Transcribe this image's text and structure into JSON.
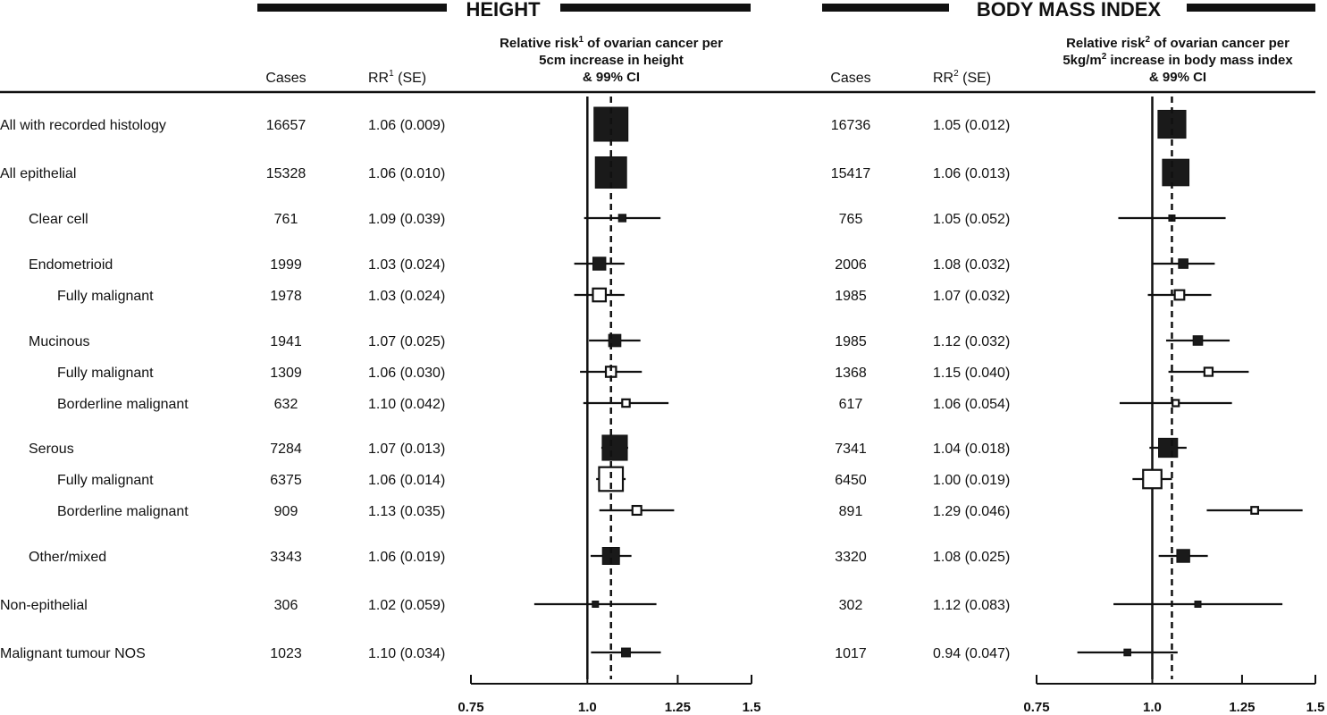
{
  "panels": {
    "height": {
      "title": "HEIGHT",
      "cases_header": "Cases",
      "rr_header": "RR",
      "rr_sup": "1",
      "rr_se": " (SE)",
      "axis_title": {
        "l1a": "Relative risk",
        "l1sup": "1",
        "l1b": " of ovarian cancer per",
        "l2a": "5cm increase in height",
        "l2sup": "",
        "l2b": "",
        "l3": "& 99% CI"
      }
    },
    "bmi": {
      "title": "BODY MASS INDEX",
      "cases_header": "Cases",
      "rr_header": "RR",
      "rr_sup": "2",
      "rr_se": " (SE)",
      "axis_title": {
        "l1a": "Relative risk",
        "l1sup": "2",
        "l1b": " of ovarian cancer per",
        "l2a": "5kg/m",
        "l2sup": "2",
        "l2b": " increase in body mass index",
        "l3": "& 99% CI"
      }
    }
  },
  "chart_data": {
    "type": "forest",
    "x_scale": "log",
    "reference_line": 1.0,
    "xlim": [
      0.75,
      1.5
    ],
    "xticks": [
      0.75,
      1.0,
      1.25,
      1.5
    ],
    "xtick_labels": [
      "0.75",
      "1.0",
      "1.25",
      "1.5"
    ],
    "height_summary_line": 1.06,
    "bmi_summary_line": 1.05,
    "rows": [
      {
        "label": "All with recorded histology",
        "indent": 0,
        "filled": true,
        "height": {
          "cases": "16657",
          "rr_text": "1.06 (0.009)",
          "rr": 1.06,
          "lo": 1.036,
          "hi": 1.085,
          "box": 1.0
        },
        "bmi": {
          "cases": "16736",
          "rr_text": "1.05 (0.012)",
          "rr": 1.05,
          "lo": 1.018,
          "hi": 1.083,
          "box": 0.82
        }
      },
      {
        "label": "All epithelial",
        "indent": 0,
        "filled": true,
        "height": {
          "cases": "15328",
          "rr_text": "1.06 (0.010)",
          "rr": 1.06,
          "lo": 1.033,
          "hi": 1.088,
          "box": 0.92
        },
        "bmi": {
          "cases": "15417",
          "rr_text": "1.06 (0.013)",
          "rr": 1.06,
          "lo": 1.025,
          "hi": 1.096,
          "box": 0.78
        }
      },
      {
        "label": "Clear cell",
        "indent": 1,
        "filled": true,
        "height": {
          "cases": "761",
          "rr_text": "1.09 (0.039)",
          "rr": 1.09,
          "lo": 0.992,
          "hi": 1.198,
          "box": 0.22
        },
        "bmi": {
          "cases": "765",
          "rr_text": "1.05 (0.052)",
          "rr": 1.05,
          "lo": 0.919,
          "hi": 1.2,
          "box": 0.18
        }
      },
      {
        "label": "Endometrioid",
        "indent": 1,
        "filled": true,
        "height": {
          "cases": "1999",
          "rr_text": "1.03 (0.024)",
          "rr": 1.03,
          "lo": 0.968,
          "hi": 1.096,
          "box": 0.38
        },
        "bmi": {
          "cases": "2006",
          "rr_text": "1.08 (0.032)",
          "rr": 1.08,
          "lo": 0.998,
          "hi": 1.168,
          "box": 0.28
        }
      },
      {
        "label": "Fully malignant",
        "indent": 2,
        "filled": false,
        "height": {
          "cases": "1978",
          "rr_text": "1.03 (0.024)",
          "rr": 1.03,
          "lo": 0.968,
          "hi": 1.096,
          "box": 0.38
        },
        "bmi": {
          "cases": "1985",
          "rr_text": "1.07 (0.032)",
          "rr": 1.07,
          "lo": 0.989,
          "hi": 1.158,
          "box": 0.28
        }
      },
      {
        "label": "Mucinous",
        "indent": 1,
        "filled": true,
        "height": {
          "cases": "1941",
          "rr_text": "1.07 (0.025)",
          "rr": 1.07,
          "lo": 1.004,
          "hi": 1.14,
          "box": 0.36
        },
        "bmi": {
          "cases": "1985",
          "rr_text": "1.12 (0.032)",
          "rr": 1.12,
          "lo": 1.035,
          "hi": 1.212,
          "box": 0.28
        }
      },
      {
        "label": "Fully malignant",
        "indent": 2,
        "filled": false,
        "height": {
          "cases": "1309",
          "rr_text": "1.06 (0.030)",
          "rr": 1.06,
          "lo": 0.982,
          "hi": 1.144,
          "box": 0.3
        },
        "bmi": {
          "cases": "1368",
          "rr_text": "1.15 (0.040)",
          "rr": 1.15,
          "lo": 1.041,
          "hi": 1.271,
          "box": 0.24
        }
      },
      {
        "label": "Borderline malignant",
        "indent": 2,
        "filled": false,
        "height": {
          "cases": "632",
          "rr_text": "1.10 (0.042)",
          "rr": 1.1,
          "lo": 0.99,
          "hi": 1.222,
          "box": 0.22
        },
        "bmi": {
          "cases": "617",
          "rr_text": "1.06 (0.054)",
          "rr": 1.06,
          "lo": 0.922,
          "hi": 1.219,
          "box": 0.18
        }
      },
      {
        "label": "Serous",
        "indent": 1,
        "filled": true,
        "height": {
          "cases": "7284",
          "rr_text": "1.07 (0.013)",
          "rr": 1.07,
          "lo": 1.035,
          "hi": 1.106,
          "box": 0.74
        },
        "bmi": {
          "cases": "7341",
          "rr_text": "1.04 (0.018)",
          "rr": 1.04,
          "lo": 0.993,
          "hi": 1.089,
          "box": 0.56
        }
      },
      {
        "label": "Fully malignant",
        "indent": 2,
        "filled": false,
        "height": {
          "cases": "6375",
          "rr_text": "1.06 (0.014)",
          "rr": 1.06,
          "lo": 1.022,
          "hi": 1.099,
          "box": 0.7
        },
        "bmi": {
          "cases": "6450",
          "rr_text": "1.00 (0.019)",
          "rr": 1.0,
          "lo": 0.952,
          "hi": 1.05,
          "box": 0.54
        }
      },
      {
        "label": "Borderline malignant",
        "indent": 2,
        "filled": false,
        "height": {
          "cases": "909",
          "rr_text": "1.13 (0.035)",
          "rr": 1.13,
          "lo": 1.03,
          "hi": 1.239,
          "box": 0.26
        },
        "bmi": {
          "cases": "891",
          "rr_text": "1.29 (0.046)",
          "rr": 1.29,
          "lo": 1.145,
          "hi": 1.453,
          "box": 0.2
        }
      },
      {
        "label": "Other/mixed",
        "indent": 1,
        "filled": true,
        "height": {
          "cases": "3343",
          "rr_text": "1.06 (0.019)",
          "rr": 1.06,
          "lo": 1.008,
          "hi": 1.115,
          "box": 0.5
        },
        "bmi": {
          "cases": "3320",
          "rr_text": "1.08 (0.025)",
          "rr": 1.08,
          "lo": 1.016,
          "hi": 1.148,
          "box": 0.38
        }
      },
      {
        "label": "Non-epithelial",
        "indent": 0,
        "filled": true,
        "height": {
          "cases": "306",
          "rr_text": "1.02 (0.059)",
          "rr": 1.02,
          "lo": 0.877,
          "hi": 1.186,
          "box": 0.16
        },
        "bmi": {
          "cases": "302",
          "rr_text": "1.12 (0.083)",
          "rr": 1.12,
          "lo": 0.908,
          "hi": 1.382,
          "box": 0.14
        }
      },
      {
        "label": "Malignant tumour NOS",
        "indent": 0,
        "filled": true,
        "height": {
          "cases": "1023",
          "rr_text": "1.10 (0.034)",
          "rr": 1.1,
          "lo": 1.009,
          "hi": 1.199,
          "box": 0.26
        },
        "bmi": {
          "cases": "1017",
          "rr_text": "0.94 (0.047)",
          "rr": 0.94,
          "lo": 0.83,
          "hi": 1.065,
          "box": 0.2
        }
      }
    ]
  }
}
